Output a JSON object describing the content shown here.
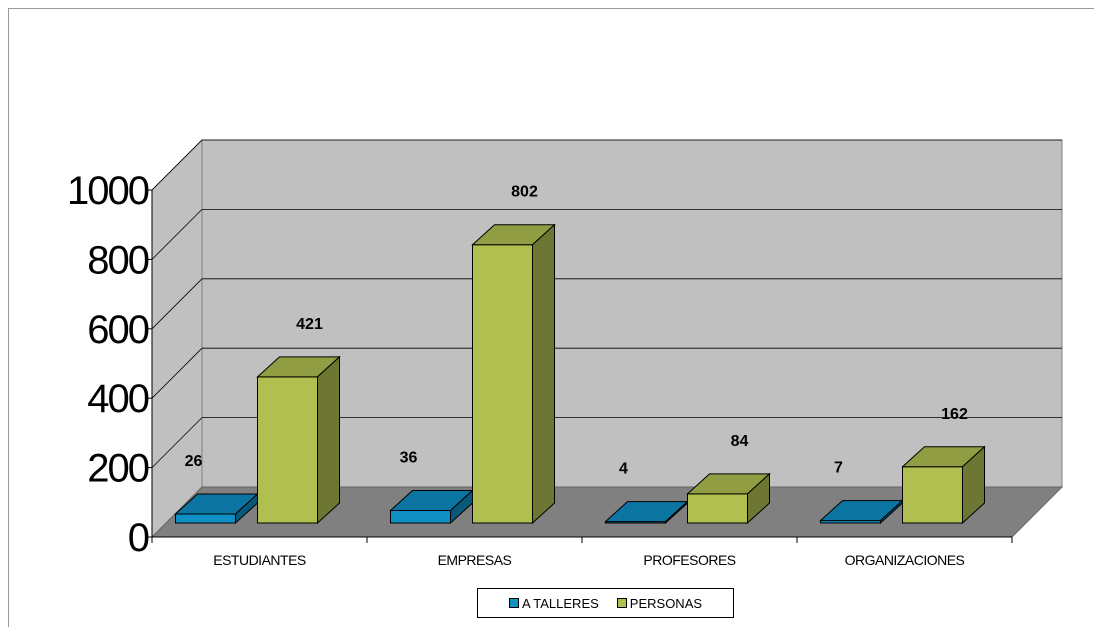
{
  "chart_data": {
    "type": "bar",
    "categories": [
      "ESTUDIANTES",
      "EMPRESAS",
      "PROFESORES",
      "ORGANIZACIONES"
    ],
    "series": [
      {
        "name": "A TALLERES",
        "values": [
          26,
          36,
          4,
          7
        ],
        "color": "#0f8fc4",
        "labels": [
          "26",
          "36",
          "4",
          "7"
        ]
      },
      {
        "name": "PERSONAS",
        "values": [
          421,
          802,
          84,
          162
        ],
        "color": "#b0bf50",
        "labels": [
          "421",
          "802",
          "84",
          "162"
        ]
      }
    ],
    "y_ticks": [
      "0",
      "200",
      "400",
      "600",
      "800",
      "1000"
    ],
    "ylim": [
      0,
      1000
    ],
    "grid": true,
    "legend_position": "bottom",
    "style": "3d-clustered-column"
  }
}
